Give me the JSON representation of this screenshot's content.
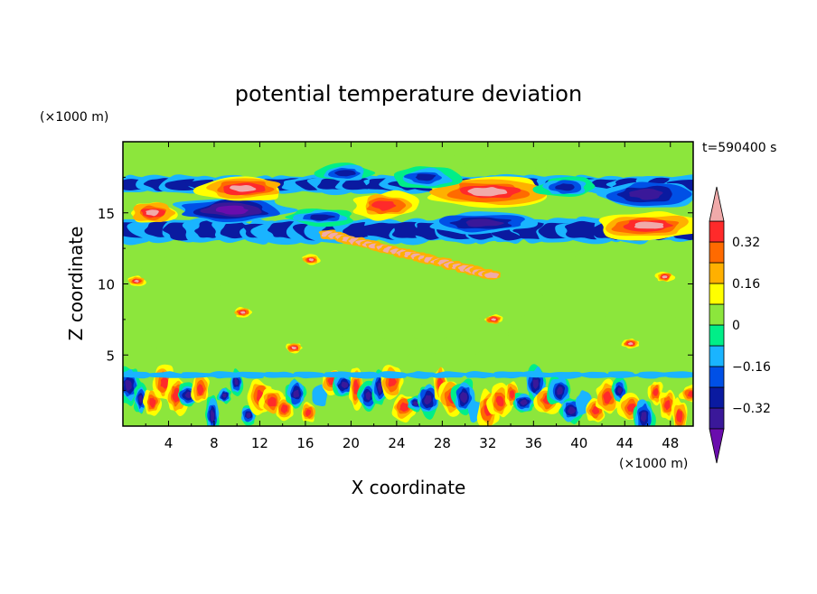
{
  "chart_data": {
    "type": "heatmap",
    "subtype": "filled-contour",
    "title": "potential temperature deviation",
    "xlabel": "X coordinate",
    "ylabel": "Z coordinate",
    "x_unit_label": "(×1000 m)",
    "y_unit_label": "(×1000 m)",
    "time_label": "t=590400 s",
    "xlim": [
      0,
      50
    ],
    "ylim": [
      0,
      20
    ],
    "x_ticks": [
      4,
      8,
      12,
      16,
      20,
      24,
      28,
      32,
      36,
      40,
      44,
      48
    ],
    "x_tick_labels": [
      "4",
      "8",
      "12",
      "16",
      "20",
      "24",
      "28",
      "32",
      "36",
      "40",
      "44",
      "48"
    ],
    "y_ticks": [
      5,
      10,
      15
    ],
    "y_tick_labels": [
      "5",
      "10",
      "15"
    ],
    "colorbar": {
      "levels": [
        -0.48,
        -0.4,
        -0.32,
        -0.24,
        -0.16,
        -0.08,
        0,
        0.08,
        0.16,
        0.24,
        0.32,
        0.4,
        0.48
      ],
      "colors": [
        "#6a0dad",
        "#3a1899",
        "#0a1aa0",
        "#0050e6",
        "#1ab4ff",
        "#00ee88",
        "#8ce63c",
        "#ffff00",
        "#ffb000",
        "#ff6a00",
        "#ff2a2a",
        "#f0aaaa"
      ],
      "tick_labels": [
        "0.32",
        "0.16",
        "0",
        "−0.16",
        "−0.32"
      ],
      "tick_values": [
        0.32,
        0.16,
        0,
        -0.16,
        -0.32
      ],
      "extend": "both"
    },
    "field_background_class": 6,
    "features": [
      {
        "kind": "band",
        "z": [
          13.0,
          14.5
        ],
        "x": [
          0,
          50
        ],
        "class": 2,
        "note": "negative band below upper structure"
      },
      {
        "kind": "band",
        "z": [
          16.5,
          17.5
        ],
        "x": [
          0,
          50
        ],
        "class": 2,
        "note": "upper negative band"
      },
      {
        "kind": "patch",
        "x": [
          1,
          4
        ],
        "z": [
          14.2,
          16.0
        ],
        "class": 11
      },
      {
        "kind": "patch",
        "x": [
          6,
          12
        ],
        "z": [
          16.0,
          17.5
        ],
        "class": 11
      },
      {
        "kind": "patch",
        "x": [
          6,
          16
        ],
        "z": [
          14.0,
          16.0
        ],
        "class": 0
      },
      {
        "kind": "patch",
        "x": [
          22,
          26
        ],
        "z": [
          15.0,
          16.5
        ],
        "class": 9
      },
      {
        "kind": "patch",
        "x": [
          27,
          37
        ],
        "z": [
          15.5,
          17.5
        ],
        "class": 11
      },
      {
        "kind": "patch",
        "x": [
          27,
          35
        ],
        "z": [
          13.5,
          15.0
        ],
        "class": 1
      },
      {
        "kind": "patch",
        "x": [
          41,
          50
        ],
        "z": [
          12.8,
          16.0
        ],
        "class": 11
      },
      {
        "kind": "patch",
        "x": [
          42,
          50
        ],
        "z": [
          15.0,
          17.5
        ],
        "class": 1
      },
      {
        "kind": "streak",
        "x": [
          18,
          33
        ],
        "z": [
          13.5,
          10.5
        ],
        "class": 11,
        "note": "sloping warm filament"
      },
      {
        "kind": "band",
        "z": [
          0,
          3.5
        ],
        "x": [
          0,
          50
        ],
        "class": "mixed",
        "note": "boundary-layer convective cells"
      }
    ]
  }
}
